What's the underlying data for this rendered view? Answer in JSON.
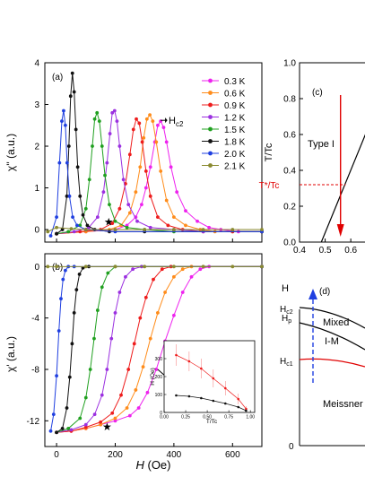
{
  "figure": {
    "panel_a": {
      "tag": "(a)",
      "ylabel": "χ'' (a.u.)",
      "yticks": [
        "0",
        "1",
        "2",
        "3",
        "4"
      ],
      "annotation": "H",
      "annotation_sub": "c2",
      "legend": [
        "0.3 K",
        "0.6 K",
        "0.9 K",
        "1.2 K",
        "1.5 K",
        "1.8 K",
        "2.0 K",
        "2.1 K"
      ]
    },
    "panel_b": {
      "tag": "(b)",
      "ylabel": "χ' (a.u.)",
      "yticks": [
        "0",
        "-4",
        "-8",
        "-12"
      ],
      "xticks": [
        "0",
        "200",
        "400",
        "600"
      ],
      "xlabel_main": "H",
      "xlabel_unit": " (Oe)",
      "annotation": "H",
      "annotation_sub": "c2"
    },
    "inset": {
      "ylabel": "H (Oe)",
      "xlabel": "T/Tc",
      "yticks": [
        "0",
        "100",
        "200",
        "300"
      ],
      "xticks": [
        "0.00",
        "0.25",
        "0.50",
        "0.75",
        "1.00"
      ]
    },
    "panel_c": {
      "tag": "(c)",
      "ylabel": "T/Tc",
      "yticks": [
        "0.0",
        "0.2",
        "0.4",
        "0.6",
        "0.8",
        "1.0"
      ],
      "xticks": [
        "0.4",
        "0.5",
        "0.6"
      ],
      "region_label": "Type I",
      "tstar_label": "T*/Tc"
    },
    "panel_d": {
      "tag": "(d)",
      "axis_label": "H",
      "hc2_label": "H",
      "hc2_sub": "c2",
      "hp_label": "H",
      "hp_sub": "p",
      "hc1_label": "H",
      "hc1_sub": "c1",
      "mixed_label": "Mixed",
      "im_label": "I-M",
      "meissner_label": "Meissner",
      "origin_label": "0"
    }
  },
  "chart_data": [
    {
      "type": "line",
      "panel": "(a)",
      "xlabel": "H (Oe)",
      "ylabel": "χ'' (a.u.)",
      "xlim": [
        -40,
        700
      ],
      "ylim": [
        -0.3,
        4
      ],
      "series": [
        {
          "name": "0.3 K",
          "color": "#ee22ee",
          "marker": "circle",
          "x": [
            0,
            100,
            200,
            240,
            270,
            290,
            305,
            320,
            335,
            345,
            355,
            365,
            375,
            390,
            410,
            440,
            480,
            520,
            560,
            620,
            700
          ],
          "y": [
            -0.1,
            -0.05,
            0.0,
            0.1,
            0.3,
            0.6,
            1.0,
            1.5,
            2.1,
            2.5,
            2.6,
            2.45,
            2.1,
            1.5,
            0.9,
            0.45,
            0.2,
            0.05,
            0.0,
            -0.05,
            -0.05
          ]
        },
        {
          "name": "0.6 K",
          "color": "#ff8c1a",
          "marker": "circle",
          "x": [
            0,
            100,
            180,
            220,
            250,
            270,
            285,
            297,
            308,
            318,
            328,
            340,
            355,
            375,
            400,
            440,
            490,
            540,
            600,
            700
          ],
          "y": [
            -0.1,
            -0.05,
            0.0,
            0.1,
            0.4,
            0.9,
            1.5,
            2.2,
            2.65,
            2.75,
            2.6,
            2.1,
            1.4,
            0.7,
            0.3,
            0.1,
            0.0,
            -0.05,
            -0.05,
            -0.05
          ]
        },
        {
          "name": "0.9 K",
          "color": "#ee1c1c",
          "marker": "circle",
          "x": [
            0,
            80,
            150,
            190,
            215,
            235,
            250,
            262,
            272,
            282,
            292,
            305,
            320,
            345,
            380,
            430,
            500,
            600,
            700
          ],
          "y": [
            -0.1,
            -0.05,
            0.0,
            0.15,
            0.5,
            1.1,
            1.8,
            2.4,
            2.65,
            2.55,
            2.1,
            1.4,
            0.8,
            0.3,
            0.1,
            0.0,
            -0.05,
            -0.05,
            -0.05
          ]
        },
        {
          "name": "1.2 K",
          "color": "#9b30e0",
          "marker": "circle",
          "x": [
            0,
            60,
            110,
            140,
            160,
            172,
            182,
            190,
            198,
            206,
            215,
            228,
            245,
            275,
            320,
            400,
            500,
            700
          ],
          "y": [
            -0.1,
            -0.05,
            0.05,
            0.3,
            0.9,
            1.6,
            2.3,
            2.8,
            2.85,
            2.6,
            2.0,
            1.2,
            0.6,
            0.2,
            0.05,
            0.0,
            -0.05,
            -0.05
          ]
        },
        {
          "name": "1.5 K",
          "color": "#20a020",
          "marker": "circle",
          "x": [
            0,
            40,
            80,
            100,
            112,
            122,
            130,
            138,
            146,
            155,
            165,
            180,
            200,
            240,
            300,
            400,
            700
          ],
          "y": [
            -0.1,
            -0.05,
            0.1,
            0.5,
            1.2,
            2.0,
            2.65,
            2.8,
            2.6,
            2.0,
            1.3,
            0.6,
            0.2,
            0.05,
            0.0,
            -0.05,
            -0.05
          ]
        },
        {
          "name": "1.8 K",
          "color": "#111111",
          "marker": "circle",
          "x": [
            0,
            20,
            35,
            42,
            48,
            54,
            60,
            66,
            72,
            80,
            90,
            105,
            130,
            180,
            300,
            700
          ],
          "y": [
            -0.1,
            0.0,
            0.8,
            2.0,
            3.2,
            3.75,
            3.3,
            2.4,
            1.5,
            0.8,
            0.35,
            0.1,
            0.0,
            -0.05,
            -0.05,
            -0.05
          ]
        },
        {
          "name": "2.0 K",
          "color": "#1f3fe0",
          "marker": "circle",
          "x": [
            -20,
            0,
            10,
            18,
            24,
            30,
            36,
            44,
            55,
            70,
            100,
            200,
            700
          ],
          "y": [
            -0.15,
            0.3,
            1.6,
            2.6,
            2.85,
            2.5,
            1.6,
            0.8,
            0.3,
            0.1,
            0.0,
            -0.05,
            -0.05
          ]
        },
        {
          "name": "2.1 K",
          "color": "#8a8a30",
          "marker": "circle",
          "x": [
            -30,
            0,
            50,
            100,
            200,
            300,
            400,
            500,
            600,
            700
          ],
          "y": [
            -0.05,
            0.05,
            0.02,
            0.0,
            0.0,
            0.0,
            0.0,
            0.0,
            0.0,
            0.0
          ]
        }
      ],
      "annotations": [
        "H_c2 arrow at ~(370, 2.6)",
        "star at ~(180, 0.2)"
      ]
    },
    {
      "type": "line",
      "panel": "(b)",
      "xlabel": "H (Oe)",
      "ylabel": "χ' (a.u.)",
      "xlim": [
        -40,
        700
      ],
      "ylim": [
        -14,
        1
      ],
      "series": [
        {
          "name": "0.3 K",
          "color": "#ee22ee",
          "x": [
            0,
            50,
            100,
            150,
            200,
            250,
            280,
            310,
            340,
            370,
            400,
            430,
            460,
            490,
            520,
            700
          ],
          "y": [
            -12.9,
            -12.8,
            -12.6,
            -12.3,
            -12.0,
            -11.6,
            -11.0,
            -9.8,
            -8.0,
            -5.8,
            -3.8,
            -2.0,
            -0.8,
            -0.2,
            0.0,
            0.0
          ]
        },
        {
          "name": "0.6 K",
          "color": "#ff8c1a",
          "x": [
            0,
            50,
            100,
            150,
            200,
            240,
            270,
            295,
            320,
            345,
            370,
            400,
            430,
            460,
            700
          ],
          "y": [
            -12.9,
            -12.8,
            -12.6,
            -12.3,
            -11.8,
            -11.0,
            -9.6,
            -7.8,
            -5.6,
            -3.6,
            -2.0,
            -0.8,
            -0.2,
            0.0,
            0.0
          ]
        },
        {
          "name": "0.9 K",
          "color": "#ee1c1c",
          "x": [
            0,
            50,
            100,
            150,
            190,
            220,
            245,
            265,
            285,
            305,
            330,
            360,
            390,
            700
          ],
          "y": [
            -12.9,
            -12.8,
            -12.5,
            -12.1,
            -11.4,
            -10.0,
            -8.0,
            -6.0,
            -4.0,
            -2.4,
            -1.0,
            -0.2,
            0.0,
            0.0
          ]
        },
        {
          "name": "1.2 K",
          "color": "#9b30e0",
          "x": [
            0,
            50,
            100,
            130,
            155,
            172,
            187,
            200,
            215,
            235,
            260,
            290,
            700
          ],
          "y": [
            -12.9,
            -12.7,
            -12.3,
            -11.5,
            -10.0,
            -8.0,
            -5.6,
            -3.6,
            -2.0,
            -0.8,
            -0.2,
            0.0,
            0.0
          ]
        },
        {
          "name": "1.5 K",
          "color": "#20a020",
          "x": [
            0,
            40,
            80,
            100,
            115,
            128,
            140,
            155,
            175,
            200,
            700
          ],
          "y": [
            -12.9,
            -12.6,
            -11.8,
            -10.2,
            -8.0,
            -5.6,
            -3.4,
            -1.6,
            -0.5,
            0.0,
            0.0
          ]
        },
        {
          "name": "1.8 K",
          "color": "#111111",
          "x": [
            0,
            20,
            35,
            45,
            53,
            60,
            68,
            78,
            90,
            110,
            700
          ],
          "y": [
            -12.9,
            -12.6,
            -11.0,
            -8.6,
            -6.0,
            -3.6,
            -1.8,
            -0.6,
            -0.1,
            0.0,
            0.0
          ]
        },
        {
          "name": "2.0 K",
          "color": "#1f3fe0",
          "x": [
            -20,
            -10,
            0,
            8,
            15,
            22,
            30,
            40,
            60,
            700
          ],
          "y": [
            -12.8,
            -11.5,
            -8.5,
            -5.0,
            -2.5,
            -1.0,
            -0.3,
            0.0,
            0.0,
            0.0
          ]
        },
        {
          "name": "2.1 K",
          "color": "#8a8a30",
          "x": [
            -30,
            0,
            100,
            200,
            300,
            400,
            500,
            600,
            700
          ],
          "y": [
            0.0,
            0.0,
            0.0,
            0.0,
            0.0,
            0.0,
            0.0,
            0.0,
            0.0
          ]
        }
      ],
      "annotations": [
        "H_c2 arrow at ~(390, -8.5)",
        "star at ~(175, -12.3)"
      ]
    },
    {
      "type": "line",
      "panel": "inset of (b)",
      "xlabel": "T/Tc",
      "ylabel": "H (Oe)",
      "xlim": [
        0,
        1.05
      ],
      "ylim": [
        0,
        400
      ],
      "series": [
        {
          "name": "H_c2",
          "color": "#ee1c1c",
          "x": [
            0.14,
            0.29,
            0.43,
            0.57,
            0.71,
            0.86,
            0.95
          ],
          "y": [
            320,
            285,
            245,
            190,
            135,
            75,
            20
          ],
          "yerr": [
            60,
            55,
            55,
            50,
            40,
            30,
            15
          ]
        },
        {
          "name": "H_c1",
          "color": "#111111",
          "x": [
            0.14,
            0.29,
            0.43,
            0.57,
            0.71,
            0.86,
            0.95
          ],
          "y": [
            95,
            90,
            80,
            65,
            50,
            30,
            10
          ],
          "yerr": [
            0,
            0,
            0,
            0,
            0,
            0,
            0
          ]
        }
      ]
    },
    {
      "type": "line",
      "panel": "(c)",
      "xlabel": "",
      "ylabel": "T/Tc",
      "xlim": [
        0.4,
        0.68
      ],
      "ylim": [
        0.0,
        1.0
      ],
      "series": [
        {
          "name": "T*/Tc line",
          "color": "#000000",
          "x": [
            0.485,
            0.68
          ],
          "y": [
            0.0,
            0.68
          ]
        }
      ],
      "reference": {
        "tstar": 0.32,
        "arrow_x": 0.56
      }
    }
  ]
}
